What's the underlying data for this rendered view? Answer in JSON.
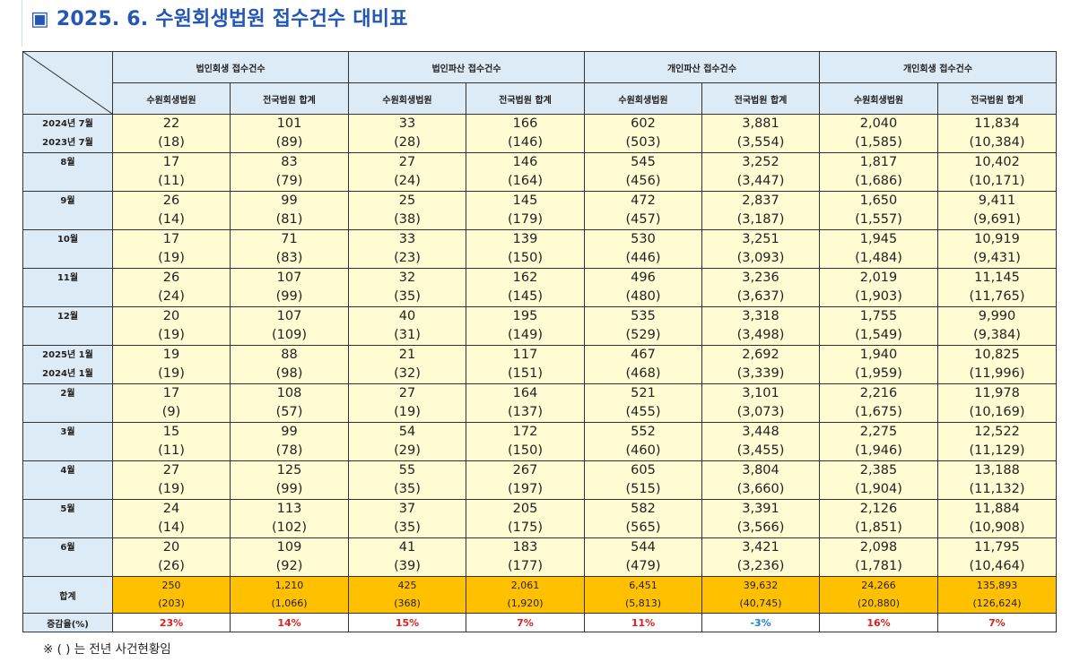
{
  "title": "▣ 2025. 6. 수원회생법원 접수건수 대비표",
  "groups": [
    "법인회생 접수건수",
    "법인파산 접수건수",
    "개인파산 접수건수",
    "개인회생 접수건수"
  ],
  "subheaders": [
    "수원회생법원",
    "전국법원 합계",
    "수원회생법원",
    "전국법원 합계",
    "수원회생법원",
    "전국법원 합계",
    "수원회생법원",
    "전국법원 합계"
  ],
  "rows": [
    {
      "labels": [
        "2024년 7월",
        "2023년 7월"
      ],
      "cur": [
        "22",
        "101",
        "33",
        "166",
        "602",
        "3,881",
        "2,040",
        "11,834"
      ],
      "prev": [
        "(18)",
        "(89)",
        "(28)",
        "(146)",
        "(503)",
        "(3,554)",
        "(1,585)",
        "(10,384)"
      ]
    },
    {
      "labels": [
        "8월",
        ""
      ],
      "cur": [
        "17",
        "83",
        "27",
        "146",
        "545",
        "3,252",
        "1,817",
        "10,402"
      ],
      "prev": [
        "(11)",
        "(79)",
        "(24)",
        "(164)",
        "(456)",
        "(3,447)",
        "(1,686)",
        "(10,171)"
      ]
    },
    {
      "labels": [
        "9월",
        ""
      ],
      "cur": [
        "26",
        "99",
        "25",
        "145",
        "472",
        "2,837",
        "1,650",
        "9,411"
      ],
      "prev": [
        "(14)",
        "(81)",
        "(38)",
        "(179)",
        "(457)",
        "(3,187)",
        "(1,557)",
        "(9,691)"
      ]
    },
    {
      "labels": [
        "10월",
        ""
      ],
      "cur": [
        "17",
        "71",
        "33",
        "139",
        "530",
        "3,251",
        "1,945",
        "10,919"
      ],
      "prev": [
        "(19)",
        "(83)",
        "(23)",
        "(150)",
        "(446)",
        "(3,093)",
        "(1,484)",
        "(9,431)"
      ]
    },
    {
      "labels": [
        "11월",
        ""
      ],
      "cur": [
        "26",
        "107",
        "32",
        "162",
        "496",
        "3,236",
        "2,019",
        "11,145"
      ],
      "prev": [
        "(24)",
        "(99)",
        "(35)",
        "(145)",
        "(480)",
        "(3,637)",
        "(1,903)",
        "(11,765)"
      ]
    },
    {
      "labels": [
        "12월",
        ""
      ],
      "cur": [
        "20",
        "107",
        "40",
        "195",
        "535",
        "3,318",
        "1,755",
        "9,990"
      ],
      "prev": [
        "(19)",
        "(109)",
        "(31)",
        "(149)",
        "(529)",
        "(3,498)",
        "(1,549)",
        "(9,384)"
      ]
    },
    {
      "labels": [
        "2025년 1월",
        "2024년 1월"
      ],
      "cur": [
        "19",
        "88",
        "21",
        "117",
        "467",
        "2,692",
        "1,940",
        "10,825"
      ],
      "prev": [
        "(19)",
        "(98)",
        "(32)",
        "(151)",
        "(468)",
        "(3,339)",
        "(1,959)",
        "(11,996)"
      ]
    },
    {
      "labels": [
        "2월",
        ""
      ],
      "cur": [
        "17",
        "108",
        "27",
        "164",
        "521",
        "3,101",
        "2,216",
        "11,978"
      ],
      "prev": [
        "(9)",
        "(57)",
        "(19)",
        "(137)",
        "(455)",
        "(3,073)",
        "(1,675)",
        "(10,169)"
      ]
    },
    {
      "labels": [
        "3월",
        ""
      ],
      "cur": [
        "15",
        "99",
        "54",
        "172",
        "552",
        "3,448",
        "2,275",
        "12,522"
      ],
      "prev": [
        "(11)",
        "(78)",
        "(29)",
        "(150)",
        "(460)",
        "(3,455)",
        "(1,946)",
        "(11,129)"
      ]
    },
    {
      "labels": [
        "4월",
        ""
      ],
      "cur": [
        "27",
        "125",
        "55",
        "267",
        "605",
        "3,804",
        "2,385",
        "13,188"
      ],
      "prev": [
        "(19)",
        "(99)",
        "(35)",
        "(197)",
        "(515)",
        "(3,660)",
        "(1,904)",
        "(11,132)"
      ]
    },
    {
      "labels": [
        "5월",
        ""
      ],
      "cur": [
        "24",
        "113",
        "37",
        "205",
        "582",
        "3,391",
        "2,126",
        "11,884"
      ],
      "prev": [
        "(14)",
        "(102)",
        "(35)",
        "(175)",
        "(565)",
        "(3,566)",
        "(1,851)",
        "(10,908)"
      ]
    },
    {
      "labels": [
        "6월",
        ""
      ],
      "cur": [
        "20",
        "109",
        "41",
        "183",
        "544",
        "3,421",
        "2,098",
        "11,795"
      ],
      "prev": [
        "(26)",
        "(92)",
        "(39)",
        "(177)",
        "(479)",
        "(3,236)",
        "(1,781)",
        "(10,464)"
      ]
    }
  ],
  "total": {
    "label": "합계",
    "cur": [
      "250",
      "1,210",
      "425",
      "2,061",
      "6,451",
      "39,632",
      "24,266",
      "135,893"
    ],
    "prev": [
      "(203)",
      "(1,066)",
      "(368)",
      "(1,920)",
      "(5,813)",
      "(40,745)",
      "(20,880)",
      "(126,624)"
    ]
  },
  "rate": {
    "label": "증감율(%)",
    "values": [
      "23%",
      "14%",
      "15%",
      "7%",
      "11%",
      "-3%",
      "16%",
      "7%"
    ],
    "colors": [
      "#e0201c",
      "#e0201c",
      "#e0201c",
      "#e0201c",
      "#e0201c",
      "#1f7fcf",
      "#e0201c",
      "#e0201c"
    ]
  },
  "colors": {
    "title": "#2357b3",
    "header_bg": "#dcebf6",
    "cell_bg": "#fffbd2",
    "total_bg": "#ffc000"
  },
  "note": "※ ( ) 는 전년 사건현황임"
}
